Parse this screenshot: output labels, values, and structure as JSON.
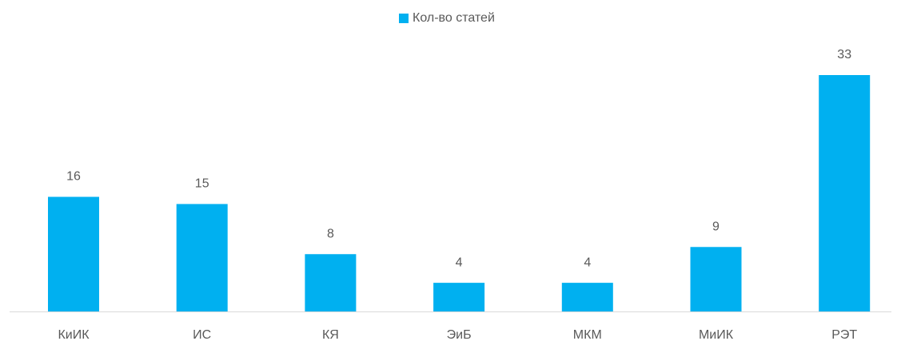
{
  "chart_data": {
    "type": "bar",
    "legend_position": "top",
    "series": [
      {
        "name": "Кол-во статей",
        "color": "#00b0f0",
        "values": [
          16,
          15,
          8,
          4,
          4,
          9,
          33
        ]
      }
    ],
    "categories": [
      "КиИК",
      "ИС",
      "КЯ",
      "ЭиБ",
      "МКМ",
      "МиИК",
      "РЭТ"
    ]
  }
}
